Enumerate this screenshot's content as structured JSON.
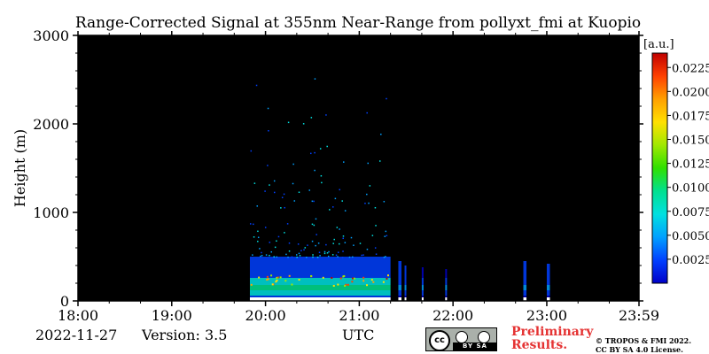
{
  "chart_data": {
    "type": "heatmap",
    "title": "Range-Corrected Signal at 355nm Near-Range from pollyxt_fmi at Kuopio",
    "ylabel": "Height (m)",
    "xlabel": "UTC",
    "x_ticks": [
      "18:00",
      "19:00",
      "20:00",
      "21:00",
      "22:00",
      "23:00",
      "23:59"
    ],
    "y_ticks": [
      "0",
      "1000",
      "2000",
      "3000"
    ],
    "xlim": [
      "18:00",
      "23:59"
    ],
    "ylim": [
      0,
      3000
    ],
    "colorbar": {
      "unit_label": "[a.u.]",
      "range": [
        0,
        0.024
      ],
      "ticks": [
        "0.0025",
        "0.0050",
        "0.0075",
        "0.0100",
        "0.0125",
        "0.0150",
        "0.0175",
        "0.0200",
        "0.0225"
      ]
    },
    "background": "#000000",
    "colormap": [
      "#0000c8",
      "#0040ff",
      "#00a0ff",
      "#00e0e0",
      "#00e090",
      "#30e000",
      "#a0e800",
      "#ffe000",
      "#ffa000",
      "#ff4000",
      "#c00000"
    ],
    "signal_segments": [
      {
        "start": "19:50",
        "end": "21:20",
        "top_height": 500,
        "peak": 0.011
      },
      {
        "start": "21:25",
        "end": "21:27",
        "top_height": 450,
        "peak": 0.005
      },
      {
        "start": "21:29",
        "end": "21:30",
        "top_height": 400,
        "peak": 0.005
      },
      {
        "start": "21:40",
        "end": "21:41",
        "top_height": 380,
        "peak": 0.004
      },
      {
        "start": "21:55",
        "end": "21:56",
        "top_height": 360,
        "peak": 0.004
      },
      {
        "start": "22:45",
        "end": "22:47",
        "top_height": 450,
        "peak": 0.005
      },
      {
        "start": "23:00",
        "end": "23:02",
        "top_height": 420,
        "peak": 0.005
      }
    ]
  },
  "footer": {
    "date": "2022-11-27",
    "version": "Version: 3.5",
    "xlabel": "UTC",
    "license_badge_text": "BY SA",
    "preliminary_line1": "Preliminary",
    "preliminary_line2": "Results.",
    "copyright_line1": "© TROPOS & FMI 2022.",
    "copyright_line2": "CC BY SA 4.0 License."
  }
}
